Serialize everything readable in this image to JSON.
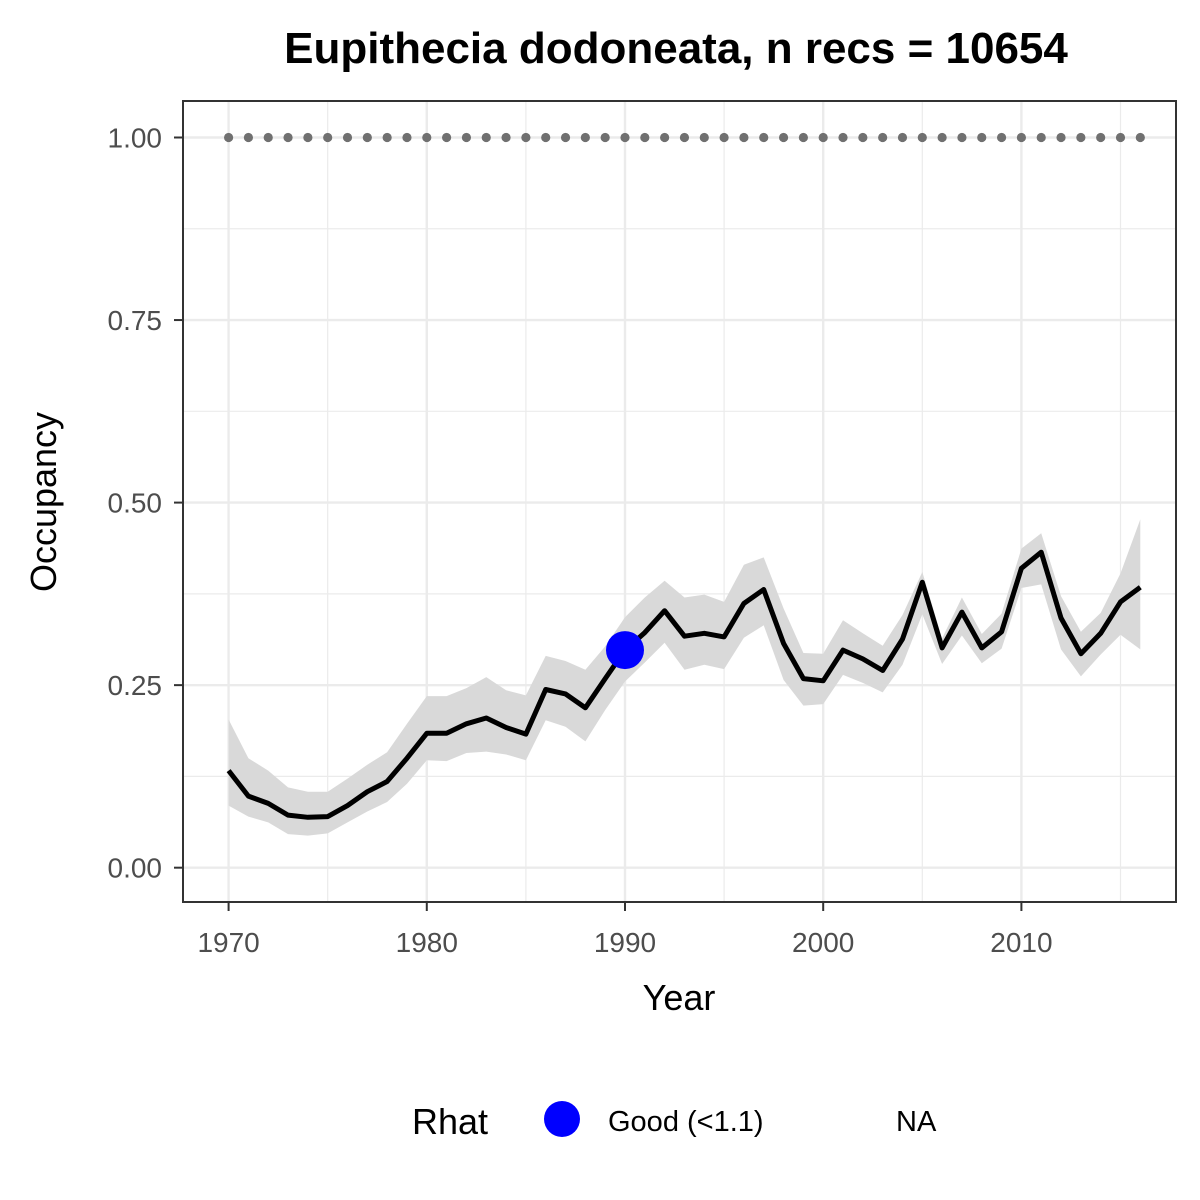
{
  "chart_data": {
    "type": "line",
    "title": "Eupithecia dodoneata, n recs = 10654",
    "xlabel": "Year",
    "ylabel": "Occupancy",
    "xlim": [
      1967.7,
      2017.8
    ],
    "ylim": [
      -0.047,
      1.05
    ],
    "x_ticks": [
      1970,
      1980,
      1990,
      2000,
      2010
    ],
    "x_tick_labels": [
      "1970",
      "1980",
      "1990",
      "2000",
      "2010"
    ],
    "y_ticks": [
      0,
      0.25,
      0.5,
      0.75,
      1.0
    ],
    "y_tick_labels": [
      "0.00",
      "0.25",
      "0.50",
      "0.75",
      "1.00"
    ],
    "grid": true,
    "legend_position": "bottom",
    "legend": {
      "title": "Rhat",
      "entries": [
        {
          "label": "Good (<1.1)",
          "color": "#0000ff"
        },
        {
          "label": "NA",
          "color": null
        }
      ]
    },
    "series": [
      {
        "role": "mean",
        "color": "#000000",
        "x": [
          1970,
          1971,
          1972,
          1973,
          1974,
          1975,
          1976,
          1977,
          1978,
          1979,
          1980,
          1981,
          1982,
          1983,
          1984,
          1985,
          1986,
          1987,
          1988,
          1989,
          1990,
          1991,
          1992,
          1993,
          1994,
          1995,
          1996,
          1997,
          1998,
          1999,
          2000,
          2001,
          2002,
          2003,
          2004,
          2005,
          2006,
          2007,
          2008,
          2009,
          2010,
          2011,
          2012,
          2013,
          2014,
          2015,
          2016
        ],
        "y": [
          0.133,
          0.098,
          0.088,
          0.072,
          0.069,
          0.07,
          0.085,
          0.104,
          0.118,
          0.15,
          0.184,
          0.184,
          0.197,
          0.205,
          0.192,
          0.183,
          0.244,
          0.238,
          0.219,
          0.259,
          0.298,
          0.322,
          0.352,
          0.317,
          0.321,
          0.316,
          0.362,
          0.381,
          0.307,
          0.259,
          0.256,
          0.298,
          0.286,
          0.27,
          0.313,
          0.391,
          0.301,
          0.35,
          0.301,
          0.323,
          0.41,
          0.432,
          0.342,
          0.293,
          0.321,
          0.364,
          0.384
        ]
      },
      {
        "role": "ci_lower",
        "color": "#d9d9d9",
        "x": [
          1970,
          1971,
          1972,
          1973,
          1974,
          1975,
          1976,
          1977,
          1978,
          1979,
          1980,
          1981,
          1982,
          1983,
          1984,
          1985,
          1986,
          1987,
          1988,
          1989,
          1990,
          1991,
          1992,
          1993,
          1994,
          1995,
          1996,
          1997,
          1998,
          1999,
          2000,
          2001,
          2002,
          2003,
          2004,
          2005,
          2006,
          2007,
          2008,
          2009,
          2010,
          2011,
          2012,
          2013,
          2014,
          2015,
          2016
        ],
        "y": [
          0.085,
          0.07,
          0.062,
          0.046,
          0.044,
          0.047,
          0.062,
          0.077,
          0.09,
          0.115,
          0.147,
          0.146,
          0.157,
          0.159,
          0.155,
          0.147,
          0.202,
          0.193,
          0.173,
          0.216,
          0.255,
          0.281,
          0.308,
          0.271,
          0.278,
          0.272,
          0.315,
          0.332,
          0.257,
          0.222,
          0.224,
          0.264,
          0.253,
          0.24,
          0.278,
          0.347,
          0.279,
          0.318,
          0.28,
          0.3,
          0.383,
          0.388,
          0.299,
          0.262,
          0.292,
          0.319,
          0.299
        ]
      },
      {
        "role": "ci_upper",
        "color": "#d9d9d9",
        "x": [
          1970,
          1971,
          1972,
          1973,
          1974,
          1975,
          1976,
          1977,
          1978,
          1979,
          1980,
          1981,
          1982,
          1983,
          1984,
          1985,
          1986,
          1987,
          1988,
          1989,
          1990,
          1991,
          1992,
          1993,
          1994,
          1995,
          1996,
          1997,
          1998,
          1999,
          2000,
          2001,
          2002,
          2003,
          2004,
          2005,
          2006,
          2007,
          2008,
          2009,
          2010,
          2011,
          2012,
          2013,
          2014,
          2015,
          2016
        ],
        "y": [
          0.203,
          0.15,
          0.133,
          0.11,
          0.104,
          0.104,
          0.122,
          0.141,
          0.158,
          0.197,
          0.235,
          0.235,
          0.246,
          0.261,
          0.243,
          0.236,
          0.29,
          0.283,
          0.271,
          0.303,
          0.343,
          0.37,
          0.393,
          0.37,
          0.374,
          0.364,
          0.415,
          0.425,
          0.355,
          0.294,
          0.293,
          0.339,
          0.321,
          0.304,
          0.346,
          0.405,
          0.314,
          0.37,
          0.32,
          0.348,
          0.437,
          0.458,
          0.372,
          0.323,
          0.349,
          0.403,
          0.477
        ]
      },
      {
        "role": "reference",
        "color": "#707070",
        "x": [
          1970,
          1971,
          1972,
          1973,
          1974,
          1975,
          1976,
          1977,
          1978,
          1979,
          1980,
          1981,
          1982,
          1983,
          1984,
          1985,
          1986,
          1987,
          1988,
          1989,
          1990,
          1991,
          1992,
          1993,
          1994,
          1995,
          1996,
          1997,
          1998,
          1999,
          2000,
          2001,
          2002,
          2003,
          2004,
          2005,
          2006,
          2007,
          2008,
          2009,
          2010,
          2011,
          2012,
          2013,
          2014,
          2015,
          2016
        ],
        "y": [
          1,
          1,
          1,
          1,
          1,
          1,
          1,
          1,
          1,
          1,
          1,
          1,
          1,
          1,
          1,
          1,
          1,
          1,
          1,
          1,
          1,
          1,
          1,
          1,
          1,
          1,
          1,
          1,
          1,
          1,
          1,
          1,
          1,
          1,
          1,
          1,
          1,
          1,
          1,
          1,
          1,
          1,
          1,
          1,
          1,
          1,
          1
        ]
      }
    ],
    "highlight_points": [
      {
        "x": 1990,
        "y": 0.298,
        "rhat": "Good (<1.1)",
        "color": "#0000ff"
      }
    ]
  }
}
